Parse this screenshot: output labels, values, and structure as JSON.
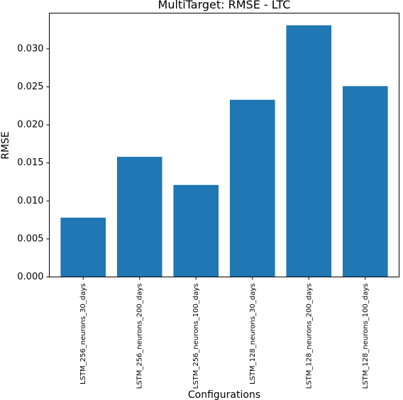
{
  "chart_data": {
    "type": "bar",
    "title": "MultiTarget: RMSE - LTC",
    "xlabel": "Configurations",
    "ylabel": "RMSE",
    "categories": [
      "LSTM_256_neurons_30_days",
      "LSTM_256_neurons_200_days",
      "LSTM_256_neurons_100_days",
      "LSTM_128_neurons_30_days",
      "LSTM_128_neurons_200_days",
      "LSTM_128_neurons_100_days"
    ],
    "values": [
      0.0078,
      0.0158,
      0.0121,
      0.0233,
      0.0331,
      0.0251
    ],
    "ylim": [
      0,
      0.0347
    ],
    "yticks": [
      0.0,
      0.005,
      0.01,
      0.015,
      0.02,
      0.025,
      0.03
    ],
    "ytick_labels": [
      "0.000",
      "0.005",
      "0.010",
      "0.015",
      "0.020",
      "0.025",
      "0.030"
    ],
    "bar_color": "#1f77b4",
    "grid": false
  }
}
